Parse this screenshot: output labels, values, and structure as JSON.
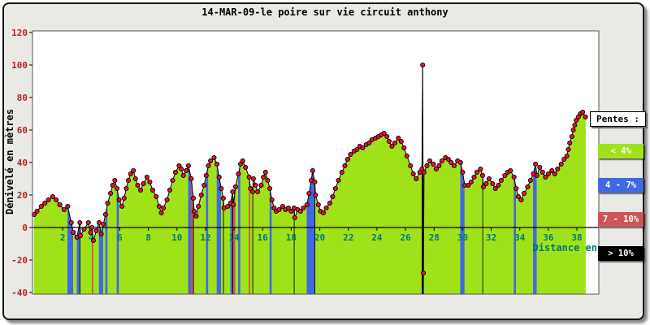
{
  "chart_data": {
    "type": "area",
    "title": "14-MAR-09-le poire sur vie circuit anthony",
    "xlabel": "Distance en",
    "ylabel": "Dénivelé en mètres",
    "xlim": [
      0,
      39.5
    ],
    "ylim": [
      -40,
      120
    ],
    "x_ticks": [
      2,
      4,
      6,
      8,
      10,
      12,
      14,
      16,
      18,
      20,
      22,
      24,
      26,
      28,
      30,
      32,
      34,
      36,
      38
    ],
    "y_ticks": [
      -40,
      -20,
      0,
      20,
      40,
      60,
      80,
      100,
      120
    ],
    "grid": false,
    "grade_thresholds": [
      4,
      7,
      10
    ],
    "grade_legend": {
      "label": "Pentes :",
      "items": [
        {
          "label": "< 4%",
          "color": "#a0e21a"
        },
        {
          "label": "4 - 7%",
          "color": "#4169e1"
        },
        {
          "label": "7 - 10%",
          "color": "#cd5555"
        },
        {
          "label": "> 10%",
          "color": "#000000"
        }
      ]
    },
    "series": [
      {
        "name": "elevation-profile",
        "line_color": "#000000",
        "point_color": "#e8112d",
        "points": [
          [
            0,
            8
          ],
          [
            0.2,
            10
          ],
          [
            0.5,
            13
          ],
          [
            0.75,
            15
          ],
          [
            1,
            17
          ],
          [
            1.3,
            19
          ],
          [
            1.55,
            17
          ],
          [
            1.8,
            14
          ],
          [
            2.1,
            11
          ],
          [
            2.35,
            13
          ],
          [
            2.6,
            3
          ],
          [
            2.75,
            -3
          ],
          [
            3,
            -6
          ],
          [
            3.2,
            3
          ],
          [
            3.25,
            -5
          ],
          [
            3.5,
            -1
          ],
          [
            3.8,
            3
          ],
          [
            3.95,
            -3
          ],
          [
            4.05,
            0
          ],
          [
            4.15,
            -8
          ],
          [
            4.35,
            -2
          ],
          [
            4.55,
            3
          ],
          [
            4.7,
            -4
          ],
          [
            4.85,
            2
          ],
          [
            5,
            8
          ],
          [
            5.15,
            15
          ],
          [
            5.35,
            21
          ],
          [
            5.5,
            26
          ],
          [
            5.65,
            29
          ],
          [
            5.8,
            24
          ],
          [
            5.95,
            17
          ],
          [
            6.15,
            13
          ],
          [
            6.3,
            18
          ],
          [
            6.45,
            24
          ],
          [
            6.6,
            29
          ],
          [
            6.75,
            33
          ],
          [
            6.95,
            35
          ],
          [
            7.1,
            30
          ],
          [
            7.25,
            26
          ],
          [
            7.45,
            23
          ],
          [
            7.65,
            27
          ],
          [
            7.9,
            31
          ],
          [
            8.1,
            28
          ],
          [
            8.3,
            23
          ],
          [
            8.55,
            19
          ],
          [
            8.75,
            13
          ],
          [
            8.9,
            9
          ],
          [
            9.05,
            12
          ],
          [
            9.3,
            17
          ],
          [
            9.5,
            23
          ],
          [
            9.7,
            29
          ],
          [
            9.9,
            34
          ],
          [
            10.15,
            38
          ],
          [
            10.3,
            36
          ],
          [
            10.45,
            32
          ],
          [
            10.65,
            35
          ],
          [
            10.8,
            38
          ],
          [
            11,
            30
          ],
          [
            11.15,
            18
          ],
          [
            11.2,
            10
          ],
          [
            11.35,
            7
          ],
          [
            11.5,
            13
          ],
          [
            11.7,
            20
          ],
          [
            11.9,
            26
          ],
          [
            12.05,
            32
          ],
          [
            12.2,
            38
          ],
          [
            12.35,
            41
          ],
          [
            12.6,
            43
          ],
          [
            12.8,
            39
          ],
          [
            12.95,
            31
          ],
          [
            13.1,
            24
          ],
          [
            13.25,
            18
          ],
          [
            13.3,
            12
          ],
          [
            13.55,
            13
          ],
          [
            13.75,
            15
          ],
          [
            13.9,
            22
          ],
          [
            13.95,
            14
          ],
          [
            14.1,
            25
          ],
          [
            14.3,
            33
          ],
          [
            14.45,
            39
          ],
          [
            14.6,
            41
          ],
          [
            14.8,
            37
          ],
          [
            15.05,
            31
          ],
          [
            15.15,
            24
          ],
          [
            15.3,
            22
          ],
          [
            15.35,
            30
          ],
          [
            15.5,
            26
          ],
          [
            15.65,
            22
          ],
          [
            15.9,
            26
          ],
          [
            16.05,
            31
          ],
          [
            16.2,
            34
          ],
          [
            16.35,
            29
          ],
          [
            16.5,
            24
          ],
          [
            16.65,
            17
          ],
          [
            16.8,
            12
          ],
          [
            16.95,
            10
          ],
          [
            17.15,
            11
          ],
          [
            17.4,
            13
          ],
          [
            17.6,
            11
          ],
          [
            17.8,
            12
          ],
          [
            18,
            10
          ],
          [
            18.2,
            12
          ],
          [
            18.25,
            6
          ],
          [
            18.45,
            11
          ],
          [
            18.65,
            10
          ],
          [
            18.85,
            12
          ],
          [
            19.1,
            14
          ],
          [
            19.25,
            21
          ],
          [
            19.4,
            29
          ],
          [
            19.5,
            35
          ],
          [
            19.65,
            28
          ],
          [
            19.7,
            20
          ],
          [
            19.9,
            14
          ],
          [
            20.05,
            10
          ],
          [
            20.25,
            9
          ],
          [
            20.45,
            12
          ],
          [
            20.7,
            15
          ],
          [
            20.9,
            19
          ],
          [
            21.1,
            24
          ],
          [
            21.3,
            29
          ],
          [
            21.55,
            34
          ],
          [
            21.75,
            38
          ],
          [
            21.95,
            42
          ],
          [
            22.15,
            45
          ],
          [
            22.4,
            47
          ],
          [
            22.6,
            48
          ],
          [
            22.8,
            50
          ],
          [
            23,
            49
          ],
          [
            23.25,
            51
          ],
          [
            23.45,
            52
          ],
          [
            23.65,
            54
          ],
          [
            23.9,
            55
          ],
          [
            24.1,
            56
          ],
          [
            24.3,
            57
          ],
          [
            24.5,
            58
          ],
          [
            24.7,
            56
          ],
          [
            24.85,
            53
          ],
          [
            25.05,
            50
          ],
          [
            25.25,
            52
          ],
          [
            25.5,
            55
          ],
          [
            25.7,
            53
          ],
          [
            25.9,
            49
          ],
          [
            26.1,
            44
          ],
          [
            26.35,
            38
          ],
          [
            26.55,
            33
          ],
          [
            26.75,
            30
          ],
          [
            27,
            34
          ],
          [
            27.15,
            36
          ],
          [
            27.2,
            100
          ],
          [
            27.25,
            -28
          ],
          [
            27.3,
            34
          ],
          [
            27.5,
            38
          ],
          [
            27.7,
            41
          ],
          [
            27.95,
            39
          ],
          [
            28.15,
            36
          ],
          [
            28.35,
            38
          ],
          [
            28.55,
            41
          ],
          [
            28.8,
            43
          ],
          [
            29,
            42
          ],
          [
            29.2,
            40
          ],
          [
            29.4,
            38
          ],
          [
            29.65,
            41
          ],
          [
            29.85,
            40
          ],
          [
            30,
            34
          ],
          [
            30.15,
            26
          ],
          [
            30.4,
            26
          ],
          [
            30.6,
            28
          ],
          [
            30.8,
            31
          ],
          [
            31,
            34
          ],
          [
            31.25,
            36
          ],
          [
            31.4,
            32
          ],
          [
            31.45,
            25
          ],
          [
            31.65,
            27
          ],
          [
            31.85,
            30
          ],
          [
            32.1,
            27
          ],
          [
            32.3,
            24
          ],
          [
            32.5,
            26
          ],
          [
            32.7,
            29
          ],
          [
            32.95,
            32
          ],
          [
            33.15,
            34
          ],
          [
            33.35,
            35
          ],
          [
            33.6,
            31
          ],
          [
            33.75,
            24
          ],
          [
            33.9,
            19
          ],
          [
            34.1,
            17
          ],
          [
            34.3,
            21
          ],
          [
            34.55,
            25
          ],
          [
            34.75,
            29
          ],
          [
            34.95,
            33
          ],
          [
            35.1,
            39
          ],
          [
            35.2,
            32
          ],
          [
            35.4,
            37
          ],
          [
            35.6,
            34
          ],
          [
            35.8,
            31
          ],
          [
            36,
            33
          ],
          [
            36.25,
            35
          ],
          [
            36.45,
            33
          ],
          [
            36.65,
            36
          ],
          [
            36.9,
            39
          ],
          [
            37.1,
            42
          ],
          [
            37.3,
            44
          ],
          [
            37.4,
            48
          ],
          [
            37.5,
            52
          ],
          [
            37.65,
            56
          ],
          [
            37.75,
            60
          ],
          [
            37.85,
            63
          ],
          [
            37.95,
            66
          ],
          [
            38.1,
            68
          ],
          [
            38.25,
            70
          ],
          [
            38.4,
            71
          ],
          [
            38.6,
            68
          ]
        ]
      }
    ]
  },
  "colors": {
    "card_background": "#e9e9e5",
    "plot_background": "#ffffff",
    "plot_border": "#555555",
    "zero_axis": "#000000",
    "series_line": "#000000",
    "point_fill": "#e8112d",
    "x_tick_color": "#007878",
    "y_tick_color": "#bb2222"
  }
}
